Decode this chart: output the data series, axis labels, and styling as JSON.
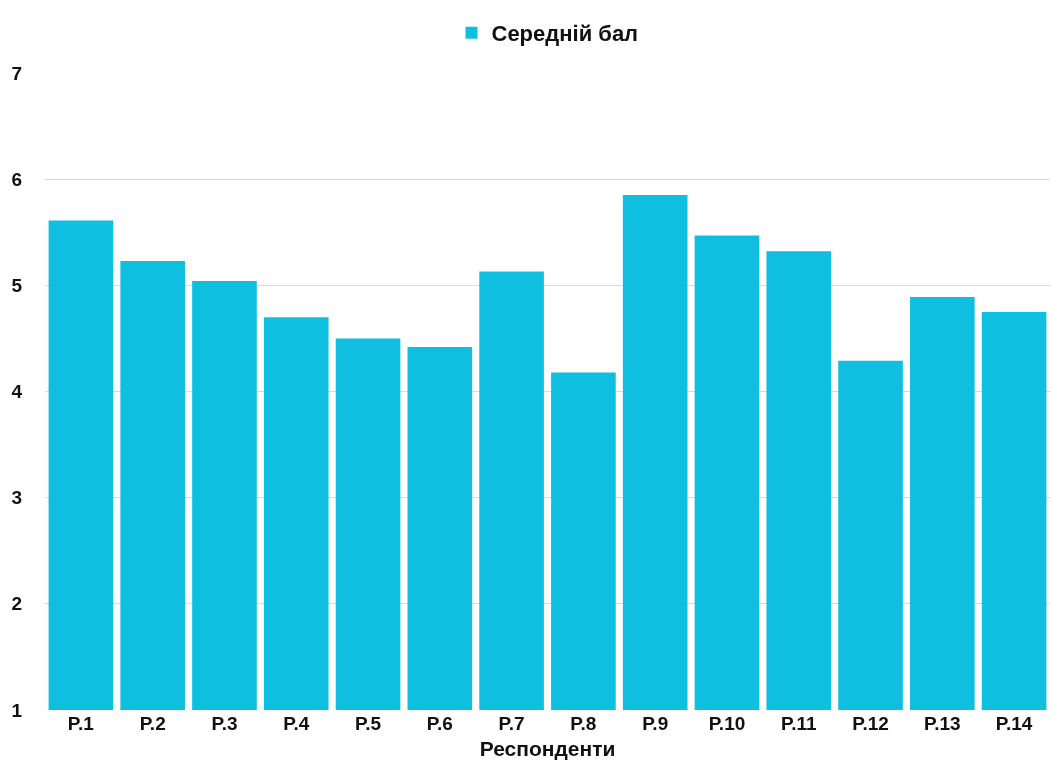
{
  "chart_data": {
    "type": "bar",
    "xlabel": "Респонденти",
    "categories": [
      "P.1",
      "P.2",
      "P.3",
      "P.4",
      "P.5",
      "P.6",
      "P.7",
      "P.8",
      "P.9",
      "P.10",
      "P.11",
      "P.12",
      "P.13",
      "P.14"
    ],
    "series": [
      {
        "name": "Середній бал",
        "color": "#0fbfe0",
        "values": [
          5.61,
          5.23,
          5.04,
          4.7,
          4.5,
          4.42,
          5.13,
          4.18,
          5.85,
          5.47,
          5.32,
          4.29,
          4.89,
          4.75
        ]
      }
    ],
    "ylim": [
      1,
      7
    ],
    "yticks": [
      1,
      2,
      3,
      4,
      5,
      6,
      7
    ],
    "grid": "y",
    "legend": "top"
  }
}
